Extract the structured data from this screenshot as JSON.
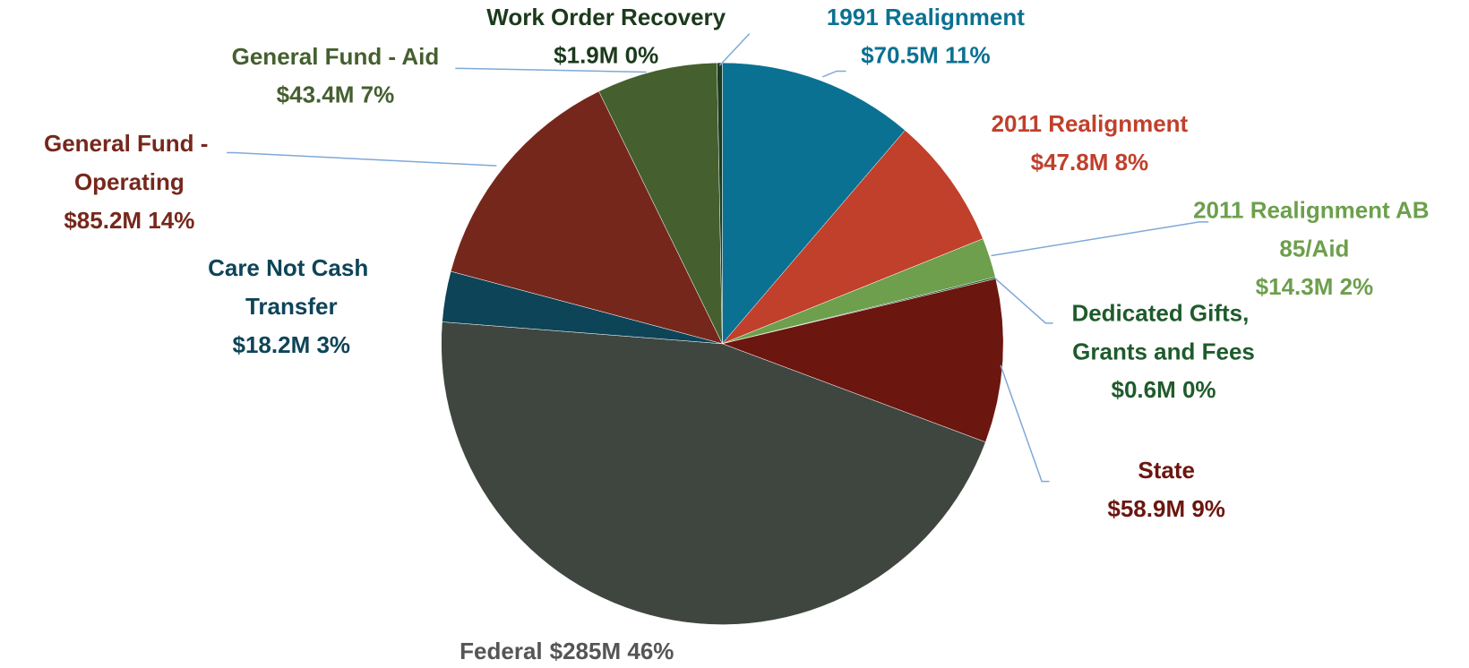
{
  "chart_data": {
    "type": "pie",
    "categories": [
      "1991 Realignment",
      "2011 Realignment",
      "2011 Realignment AB 85/Aid",
      "Dedicated Gifts, Grants and Fees",
      "State",
      "Federal",
      "Care Not Cash Transfer",
      "General Fund - Operating",
      "General Fund - Aid",
      "Work Order Recovery"
    ],
    "values": [
      70.5,
      47.8,
      14.3,
      0.6,
      58.9,
      285,
      18.2,
      85.2,
      43.4,
      1.9
    ],
    "value_labels": [
      "$70.5M 11%",
      "$47.8M 8%",
      "$14.3M 2%",
      "$0.6M 0%",
      "$58.9M 9%",
      "$285M 46%",
      "$18.2M 3%",
      "$85.2M 14%",
      "$43.4M 7%",
      "$1.9M 0%"
    ],
    "colors": [
      "#0b7192",
      "#c0402b",
      "#6d9f4c",
      "#1f5b2c",
      "#6b160f",
      "#3f4640",
      "#0e4458",
      "#76271c",
      "#455f2f",
      "#1b3a1c"
    ]
  }
}
